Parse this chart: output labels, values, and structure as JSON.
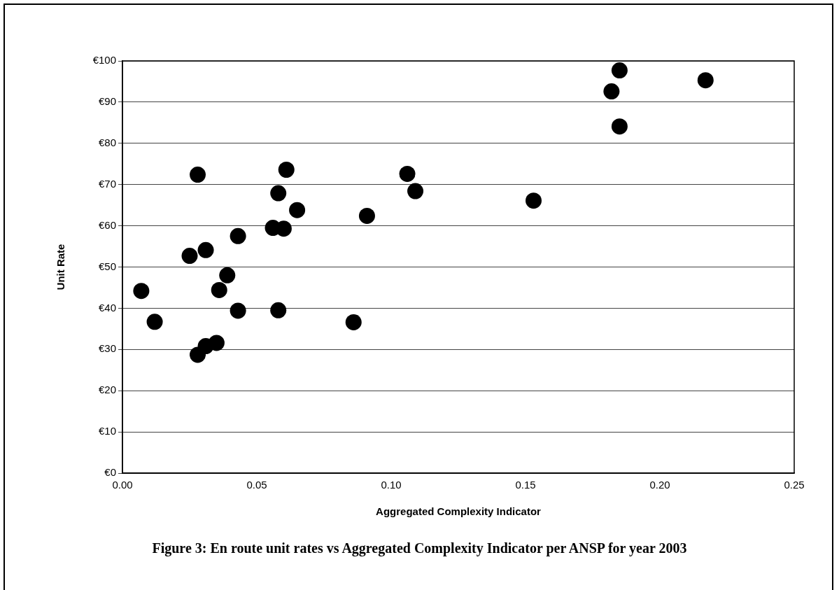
{
  "chart_data": {
    "type": "scatter",
    "xlabel": "Aggregated Complexity Indicator",
    "ylabel": "Unit Rate",
    "annotations": [
      "Figure 3: En route unit rates vs Aggregated Complexity Indicator per ANSP for year 2003"
    ],
    "x": [
      0.028,
      0.061,
      0.058,
      0.065,
      0.056,
      0.06,
      0.043,
      0.031,
      0.025,
      0.091,
      0.106,
      0.109,
      0.007,
      0.012,
      0.039,
      0.036,
      0.043,
      0.058,
      0.086,
      0.035,
      0.031,
      0.028,
      0.185,
      0.182,
      0.185,
      0.217,
      0.153
    ],
    "series": [
      {
        "color": "#000000",
        "values": [
          72.4,
          73.6,
          67.9,
          63.8,
          59.5,
          59.3,
          57.5,
          54.1,
          52.7,
          62.4,
          72.6,
          68.4,
          44.2,
          36.7,
          48.0,
          44.4,
          39.4,
          39.5,
          36.6,
          31.6,
          30.8,
          28.7,
          97.7,
          92.6,
          84.1,
          95.3,
          66.1
        ]
      }
    ],
    "xlim": [
      0,
      0.25
    ],
    "xticks": [
      {
        "value": 0,
        "label": "0.00"
      },
      {
        "value": 0.05,
        "label": "0.05"
      },
      {
        "value": 0.1,
        "label": "0.10"
      },
      {
        "value": 0.15,
        "label": "0.15"
      },
      {
        "value": 0.2,
        "label": "0.20"
      },
      {
        "value": 0.25,
        "label": "0.25"
      }
    ],
    "ylim": [
      0,
      100
    ],
    "yticks": [
      {
        "value": 0,
        "label": "€0"
      },
      {
        "value": 10,
        "label": "€10"
      },
      {
        "value": 20,
        "label": "€20"
      },
      {
        "value": 30,
        "label": "€30"
      },
      {
        "value": 40,
        "label": "€40"
      },
      {
        "value": 50,
        "label": "€50"
      },
      {
        "value": 60,
        "label": "€60"
      },
      {
        "value": 70,
        "label": "€70"
      },
      {
        "value": 80,
        "label": "€80"
      },
      {
        "value": 90,
        "label": "€90"
      },
      {
        "value": 100,
        "label": "€100"
      }
    ],
    "grid": "y",
    "legend": false,
    "marker": "circle"
  }
}
